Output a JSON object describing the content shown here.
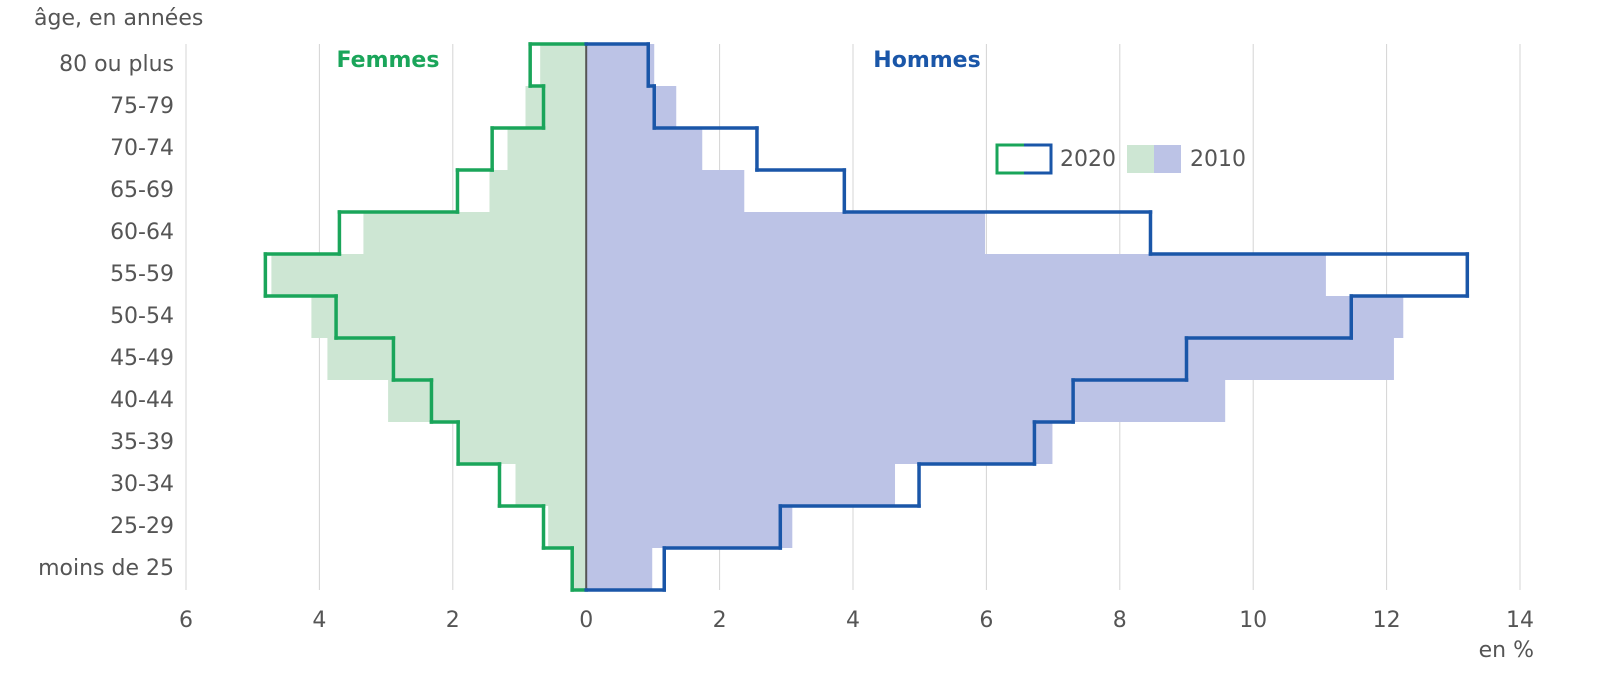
{
  "chart_data": {
    "type": "pyramid",
    "y_label": "âge, en années",
    "x_label": "en %",
    "categories": [
      "80 ou plus",
      "75-79",
      "70-74",
      "65-69",
      "60-64",
      "55-59",
      "50-54",
      "45-49",
      "40-44",
      "35-39",
      "30-34",
      "25-29",
      "moins de 25"
    ],
    "sides": [
      {
        "name": "Femmes",
        "color": "#1aa55a",
        "fill": "#cde6d3"
      },
      {
        "name": "Hommes",
        "color": "#1a56a8",
        "fill": "#bcc3e6"
      }
    ],
    "series": [
      {
        "name": "2020",
        "style": "outline",
        "women": [
          0.84,
          0.64,
          1.41,
          1.93,
          3.7,
          4.81,
          3.75,
          2.89,
          2.32,
          1.92,
          1.3,
          0.64,
          0.21
        ],
        "men": [
          0.93,
          1.02,
          2.56,
          3.87,
          8.46,
          13.21,
          11.47,
          9.0,
          7.3,
          6.72,
          4.99,
          2.91,
          1.17
        ]
      },
      {
        "name": "2010",
        "style": "fill",
        "women": [
          0.69,
          0.91,
          1.18,
          1.45,
          3.34,
          4.72,
          4.12,
          3.88,
          2.97,
          1.92,
          1.06,
          0.57,
          0.21
        ],
        "men": [
          1.02,
          1.35,
          1.74,
          2.37,
          5.98,
          11.09,
          12.25,
          12.11,
          9.58,
          6.99,
          4.63,
          3.09,
          0.99
        ]
      }
    ],
    "xlim": [
      -6,
      14
    ],
    "xticks": [
      {
        "value": -6,
        "label": "6"
      },
      {
        "value": -4,
        "label": "4"
      },
      {
        "value": -2,
        "label": "2"
      },
      0,
      2,
      4,
      6,
      8,
      10,
      12,
      14
    ],
    "grid": true
  }
}
